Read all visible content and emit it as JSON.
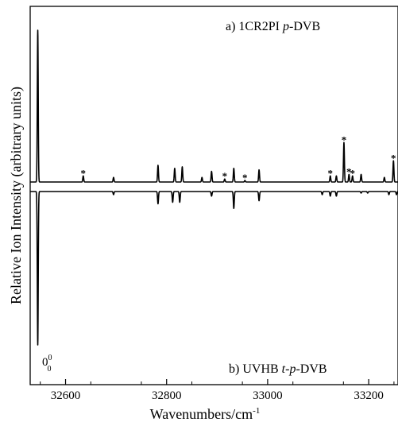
{
  "chart_data": {
    "type": "line",
    "xlabel": "Wavenumbers/cm",
    "xlabel_sup": "-1",
    "ylabel": "Relative Ion Intensity (arbitrary units)",
    "xlim": [
      32530,
      32210
    ],
    "x_ticks": [
      32600,
      32800,
      33000,
      33200
    ],
    "x_tick_labels": [
      "32600",
      "32800",
      "33000",
      "33200"
    ],
    "upper_label": {
      "prefix": "a) 1CR2PI ",
      "italic": "p",
      "suffix": "-DVB"
    },
    "lower_label": {
      "prefix": "b) UVHB ",
      "italic": "t-p",
      "suffix": "-DVB"
    },
    "origin_label": {
      "base": "0",
      "sup": "0",
      "sub": "0"
    },
    "star_marker": "*",
    "series": [
      {
        "direction": "up",
        "peaks": [
          [
            32545,
            1.0
          ],
          [
            32635,
            0.04
          ],
          [
            32695,
            0.03
          ],
          [
            32783,
            0.11
          ],
          [
            32816,
            0.09
          ],
          [
            32831,
            0.1
          ],
          [
            32870,
            0.03
          ],
          [
            32889,
            0.07
          ],
          [
            32915,
            0.02
          ],
          [
            32933,
            0.09
          ],
          [
            32955,
            0.01
          ],
          [
            32983,
            0.08
          ],
          [
            33124,
            0.04
          ],
          [
            33136,
            0.04
          ],
          [
            33151,
            0.26
          ],
          [
            33161,
            0.05
          ],
          [
            33168,
            0.04
          ],
          [
            33185,
            0.05
          ],
          [
            33231,
            0.03
          ],
          [
            33249,
            0.14
          ]
        ],
        "starred_x": [
          32635,
          32915,
          32955,
          33124,
          33151,
          33161,
          33168,
          33249
        ]
      },
      {
        "direction": "down",
        "peaks": [
          [
            32545,
            1.0
          ],
          [
            32695,
            0.02
          ],
          [
            32783,
            0.08
          ],
          [
            32812,
            0.07
          ],
          [
            32826,
            0.07
          ],
          [
            32889,
            0.03
          ],
          [
            32933,
            0.11
          ],
          [
            32983,
            0.06
          ],
          [
            33108,
            0.02
          ],
          [
            33124,
            0.03
          ],
          [
            33136,
            0.03
          ],
          [
            33185,
            0.01
          ],
          [
            33198,
            0.01
          ],
          [
            33240,
            0.02
          ],
          [
            33255,
            0.02
          ]
        ]
      }
    ]
  }
}
